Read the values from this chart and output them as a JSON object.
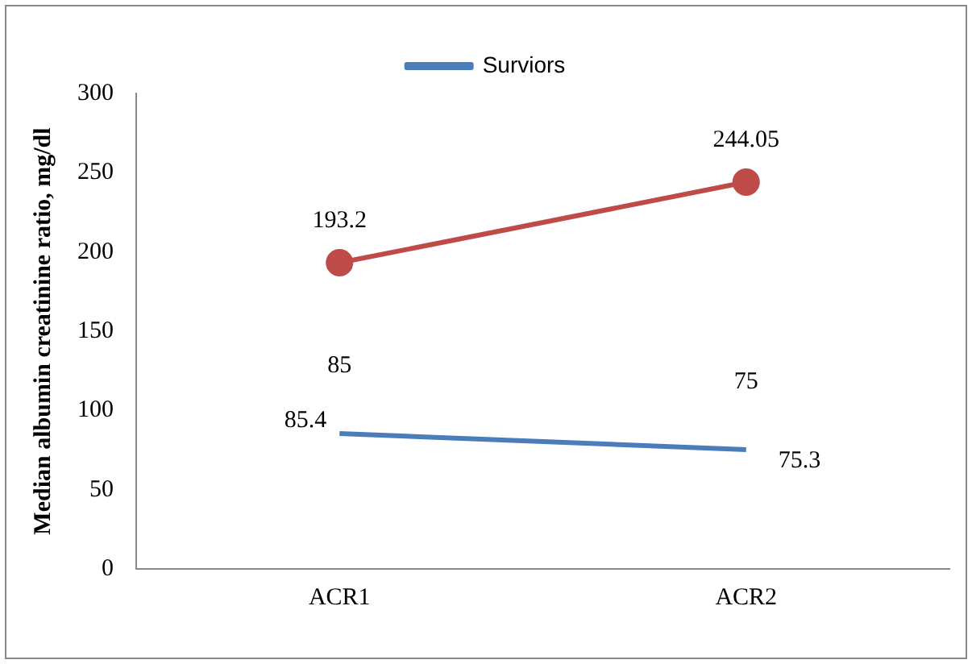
{
  "chart_data": {
    "type": "line",
    "ylabel": "Median albumin creatinine ratio, mg/dl",
    "categories": [
      "ACR1",
      "ACR2"
    ],
    "series": [
      {
        "name": "Surviors",
        "color": "#4a7ebb",
        "values": [
          85.4,
          75.3
        ],
        "marker": "none",
        "value_labels": [
          "85.4",
          "75.3"
        ]
      },
      {
        "color": "#be4b48",
        "values": [
          193.2,
          244.05
        ],
        "marker": "circle",
        "value_labels": [
          "193.2",
          "244.05"
        ]
      }
    ],
    "ylim": [
      0,
      300
    ],
    "yticks": [
      0,
      50,
      100,
      150,
      200,
      250,
      300
    ],
    "grid": false,
    "legend": "top",
    "annotations": [
      {
        "text": "85",
        "x": "ACR1",
        "y": 85.4
      },
      {
        "text": "75",
        "x": "ACR2",
        "y": 75.3
      }
    ]
  }
}
